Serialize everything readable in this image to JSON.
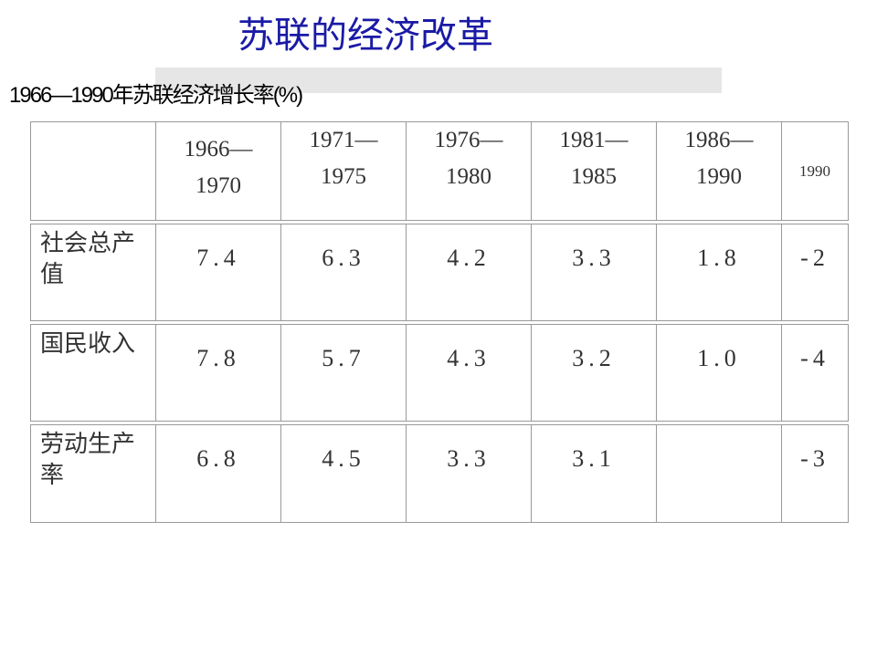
{
  "header": {
    "title": "苏联的经济改革",
    "subtitle": "1966—1990年苏联经济增长率(%)"
  },
  "table": {
    "columns": [
      [
        "1966—",
        "1970"
      ],
      [
        "1971—",
        "1975"
      ],
      [
        "1976—",
        "1980"
      ],
      [
        "1981—",
        "1985"
      ],
      [
        "1986—",
        "1990"
      ],
      [
        "1990"
      ]
    ],
    "rows": [
      {
        "label": "社会总产值",
        "values": [
          "7.4",
          "6.3",
          "4.2",
          "3.3",
          "1.8",
          "-2"
        ]
      },
      {
        "label": "国民收入",
        "values": [
          "7.8",
          "5.7",
          "4.3",
          "3.2",
          "1.0",
          "-4"
        ]
      },
      {
        "label": "劳动生产率",
        "values": [
          "6.8",
          "4.5",
          "3.3",
          "3.1",
          null,
          "-3"
        ]
      }
    ]
  }
}
